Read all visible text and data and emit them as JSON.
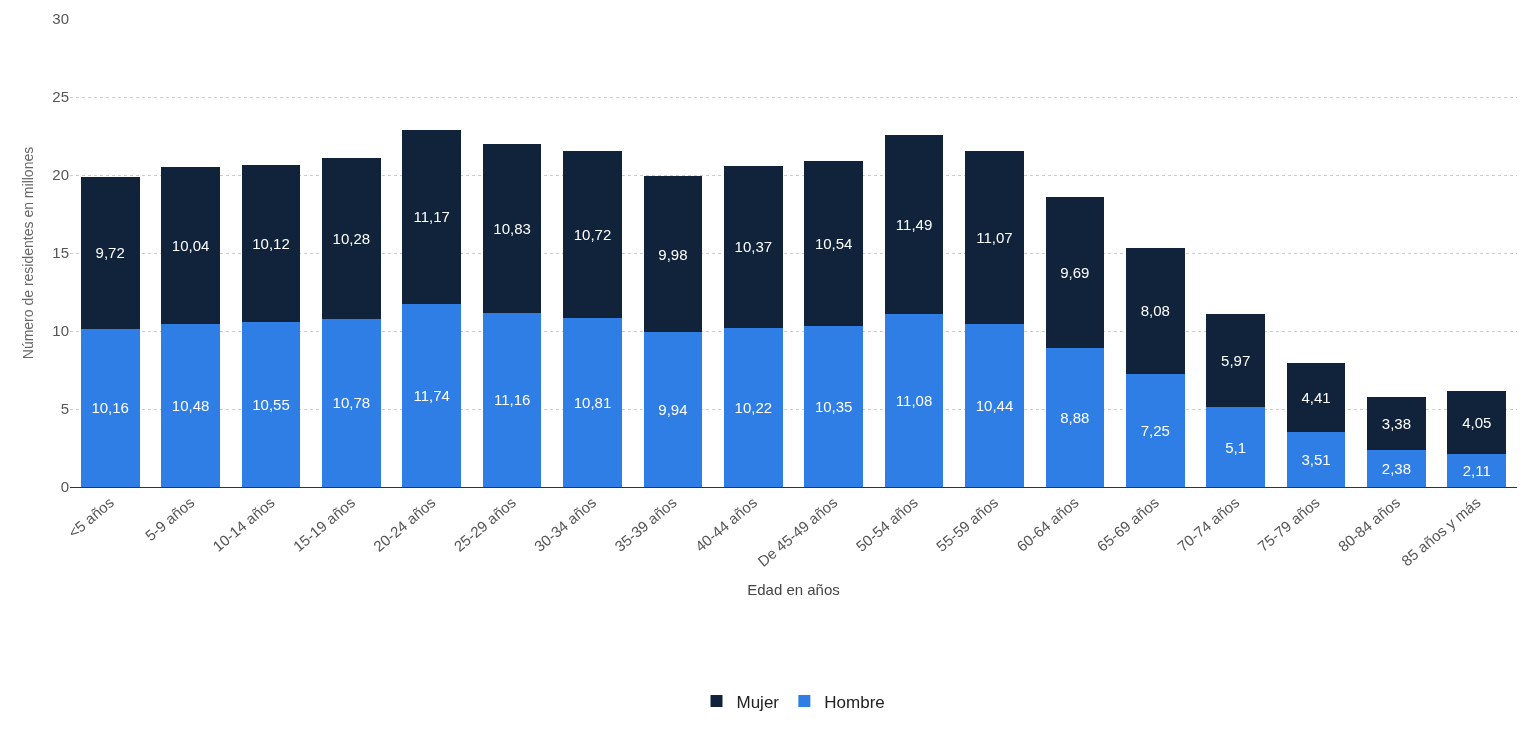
{
  "chart_data": {
    "type": "bar",
    "stacked": true,
    "categories": [
      "<5 años",
      "5-9 años",
      "10-14 años",
      "15-19 años",
      "20-24 años",
      "25-29 años",
      "30-34 años",
      "35-39 años",
      "40-44 años",
      "De 45-49 años",
      "50-54 años",
      "55-59 años",
      "60-64 años",
      "65-69 años",
      "70-74 años",
      "75-79 años",
      "80-84 años",
      "85 años y más"
    ],
    "series": [
      {
        "name": "Hombre",
        "color": "#2f7ee6",
        "values": [
          10.16,
          10.48,
          10.55,
          10.78,
          11.74,
          11.16,
          10.81,
          9.94,
          10.22,
          10.35,
          11.08,
          10.44,
          8.88,
          7.25,
          5.1,
          3.51,
          2.38,
          2.11
        ],
        "value_labels": [
          "10,16",
          "10,48",
          "10,55",
          "10,78",
          "11,74",
          "11,16",
          "10,81",
          "9,94",
          "10,22",
          "10,35",
          "11,08",
          "10,44",
          "8,88",
          "7,25",
          "5,1",
          "3,51",
          "2,38",
          "2,11"
        ]
      },
      {
        "name": "Mujer",
        "color": "#10233a",
        "values": [
          9.72,
          10.04,
          10.12,
          10.28,
          11.17,
          10.83,
          10.72,
          9.98,
          10.37,
          10.54,
          11.49,
          11.07,
          9.69,
          8.08,
          5.97,
          4.41,
          3.38,
          4.05
        ],
        "value_labels": [
          "9,72",
          "10,04",
          "10,12",
          "10,28",
          "11,17",
          "10,83",
          "10,72",
          "9,98",
          "10,37",
          "10,54",
          "11,49",
          "11,07",
          "9,69",
          "8,08",
          "5,97",
          "4,41",
          "3,38",
          "4,05"
        ]
      }
    ],
    "xlabel": "Edad en años",
    "ylabel": "Número de residentes en millones",
    "ylim": [
      0,
      30
    ],
    "yticks": [
      0,
      5,
      10,
      15,
      20,
      25,
      30
    ],
    "grid": "y",
    "legend": "bottom"
  }
}
